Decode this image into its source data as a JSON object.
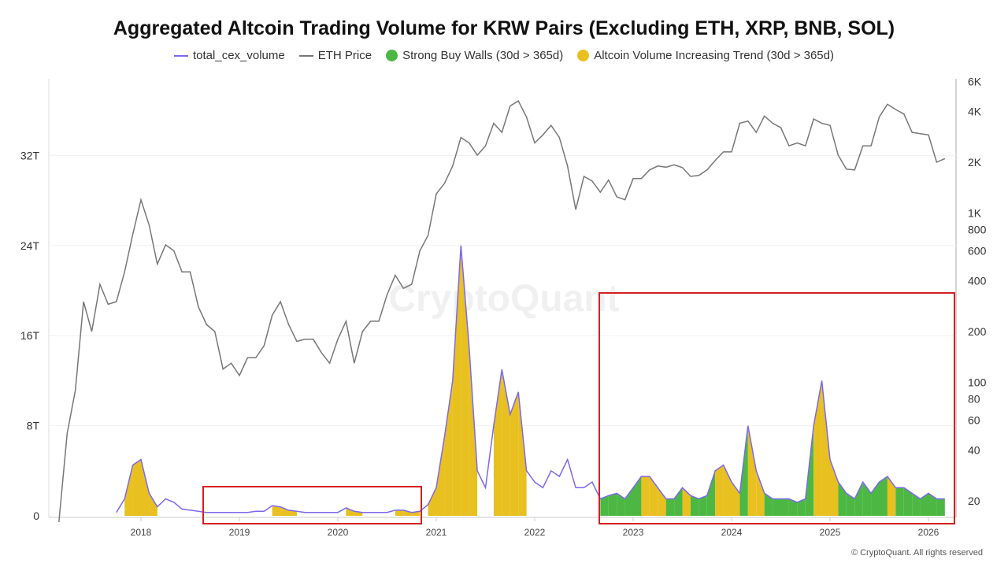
{
  "title": "Aggregated Altcoin Trading Volume for KRW Pairs (Excluding ETH, XRP, BNB, SOL)",
  "legend": [
    {
      "label": "total_cex_volume",
      "color": "#7b68ee",
      "kind": "line"
    },
    {
      "label": "ETH Price",
      "color": "#777777",
      "kind": "line"
    },
    {
      "label": "Strong Buy Walls (30d > 365d)",
      "color": "#4cb843",
      "kind": "dot"
    },
    {
      "label": "Altcoin Volume Increasing Trend (30d > 365d)",
      "color": "#e8c020",
      "kind": "dot"
    }
  ],
  "watermark": "CryptoQuant",
  "footer": "© CryptoQuant. All rights reserved",
  "chart_data": {
    "type": "line",
    "title": "Aggregated Altcoin Trading Volume for KRW Pairs (Excluding ETH, XRP, BNB, SOL)",
    "x_ticks": [
      "2018",
      "2019",
      "2020",
      "2021",
      "2022",
      "2023",
      "2024",
      "2025",
      "2026"
    ],
    "left_axis": {
      "ticks": [
        "0",
        "8T",
        "16T",
        "24T",
        "32T"
      ],
      "range": [
        0,
        38
      ],
      "unit": "T"
    },
    "right_axis": {
      "scale": "log",
      "ticks": [
        "20",
        "40",
        "60",
        "80",
        "100",
        "200",
        "400",
        "600",
        "800",
        "1K",
        "2K",
        "4K",
        "6K"
      ],
      "range": [
        15,
        6500
      ]
    },
    "grid": "horizontal",
    "legend_position": "top",
    "highlight_key": {
      "y": "Altcoin Volume Increasing Trend (30d > 365d)",
      "g": "Strong Buy Walls (30d > 365d)",
      "n": "none"
    },
    "eth_price": {
      "name": "ETH Price",
      "start": "2017-03",
      "monthly": [
        15,
        50,
        90,
        300,
        200,
        380,
        290,
        300,
        450,
        750,
        1200,
        850,
        500,
        650,
        600,
        450,
        450,
        280,
        220,
        200,
        120,
        130,
        110,
        140,
        140,
        165,
        250,
        300,
        220,
        175,
        180,
        180,
        150,
        130,
        180,
        230,
        130,
        200,
        230,
        230,
        330,
        430,
        360,
        380,
        600,
        740,
        1300,
        1500,
        1900,
        2800,
        2600,
        2200,
        2500,
        3400,
        3000,
        4300,
        4600,
        3700,
        2600,
        2900,
        3300,
        2800,
        1900,
        1050,
        1650,
        1550,
        1330,
        1570,
        1250,
        1200,
        1600,
        1600,
        1800,
        1900,
        1870,
        1930,
        1860,
        1650,
        1670,
        1800,
        2050,
        2300,
        2300,
        3400,
        3500,
        3000,
        3750,
        3400,
        3200,
        2500,
        2600,
        2500,
        3600,
        3400,
        3300,
        2200,
        1820,
        1800,
        2500,
        2500,
        3700,
        4400,
        4100,
        3850,
        3000,
        2950,
        2900,
        2000,
        2100
      ]
    },
    "total_cex_volume": {
      "name": "total_cex_volume",
      "unit": "T KRW",
      "start": "2017-10",
      "monthly": [
        0.3,
        1.5,
        4.5,
        5,
        2,
        0.8,
        1.5,
        1.2,
        0.6,
        0.5,
        0.4,
        0.3,
        0.3,
        0.3,
        0.3,
        0.3,
        0.3,
        0.4,
        0.4,
        0.9,
        0.8,
        0.5,
        0.4,
        0.3,
        0.3,
        0.3,
        0.3,
        0.3,
        0.7,
        0.4,
        0.3,
        0.3,
        0.3,
        0.3,
        0.5,
        0.5,
        0.3,
        0.4,
        1.0,
        2.5,
        7,
        12,
        24,
        15,
        4,
        2.5,
        8,
        13,
        9,
        11,
        4,
        3,
        2.5,
        4,
        3.5,
        5,
        2.5,
        2.5,
        3,
        1.5,
        1.8,
        2,
        1.5,
        2.5,
        3.5,
        3.5,
        2.5,
        1.5,
        1.5,
        2.5,
        1.8,
        1.5,
        1.8,
        4,
        4.5,
        3,
        2,
        8,
        4,
        2,
        1.5,
        1.5,
        1.5,
        1.2,
        1.5,
        8,
        12,
        5,
        3,
        2,
        1.5,
        3,
        2,
        3,
        3.5,
        2.5,
        2.5,
        2,
        1.5,
        2,
        1.5,
        1.5
      ],
      "highlight": [
        "n",
        "y",
        "y",
        "y",
        "y",
        "n",
        "n",
        "n",
        "n",
        "n",
        "n",
        "n",
        "n",
        "n",
        "n",
        "n",
        "n",
        "n",
        "n",
        "y",
        "y",
        "y",
        "n",
        "n",
        "n",
        "n",
        "n",
        "n",
        "y",
        "y",
        "n",
        "n",
        "n",
        "n",
        "y",
        "y",
        "y",
        "n",
        "y",
        "y",
        "y",
        "y",
        "y",
        "y",
        "n",
        "n",
        "y",
        "y",
        "y",
        "y",
        "n",
        "n",
        "n",
        "n",
        "n",
        "n",
        "n",
        "n",
        "n",
        "g",
        "g",
        "g",
        "g",
        "g",
        "y",
        "y",
        "y",
        "g",
        "g",
        "y",
        "g",
        "g",
        "g",
        "y",
        "y",
        "y",
        "g",
        "y",
        "y",
        "g",
        "g",
        "g",
        "g",
        "g",
        "g",
        "y",
        "y",
        "y",
        "g",
        "g",
        "g",
        "g",
        "g",
        "g",
        "y",
        "g",
        "g",
        "g",
        "g",
        "g",
        "g",
        "g"
      ]
    }
  }
}
